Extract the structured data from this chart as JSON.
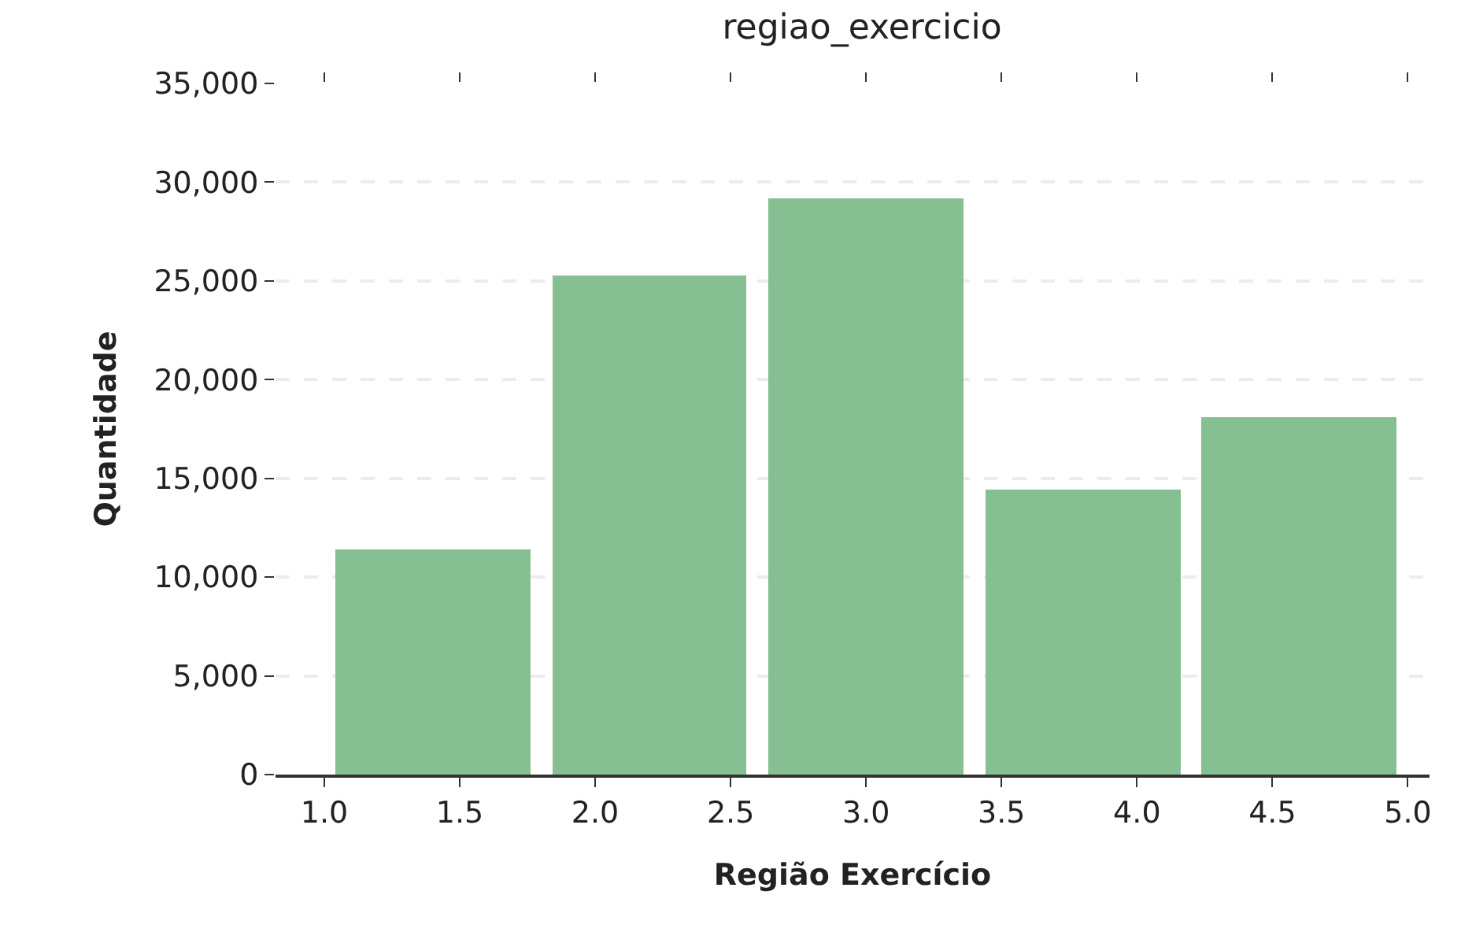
{
  "chart_data": {
    "type": "histogram",
    "title": "regiao_exercicio",
    "xlabel": "Região Exercício",
    "ylabel": "Quantidade",
    "bins": [
      1.0,
      1.8,
      2.6,
      3.4,
      4.2,
      5.0
    ],
    "values": [
      11400,
      25300,
      29200,
      14400,
      18100
    ],
    "color": "#86bf91",
    "xlim": [
      0.82,
      5.08
    ],
    "xticks": [
      {
        "value": 1.0,
        "label": "1.0"
      },
      1.5,
      {
        "value": 2.0,
        "label": "2.0"
      },
      2.5,
      {
        "value": 3.0,
        "label": "3.0"
      },
      3.5,
      {
        "value": 4.0,
        "label": "4.0"
      },
      4.5,
      {
        "value": 5.0,
        "label": "5.0"
      }
    ],
    "ylim": [
      0,
      35000
    ],
    "yticks": [
      {
        "value": 0,
        "label": "0"
      },
      {
        "value": 5000,
        "label": "5,000"
      },
      {
        "value": 10000,
        "label": "10,000"
      },
      {
        "value": 15000,
        "label": "15,000"
      },
      {
        "value": 20000,
        "label": "20,000"
      },
      {
        "value": 25000,
        "label": "25,000"
      },
      {
        "value": 30000,
        "label": "30,000"
      },
      {
        "value": 35000,
        "label": "35,000"
      }
    ],
    "grid": "y"
  }
}
